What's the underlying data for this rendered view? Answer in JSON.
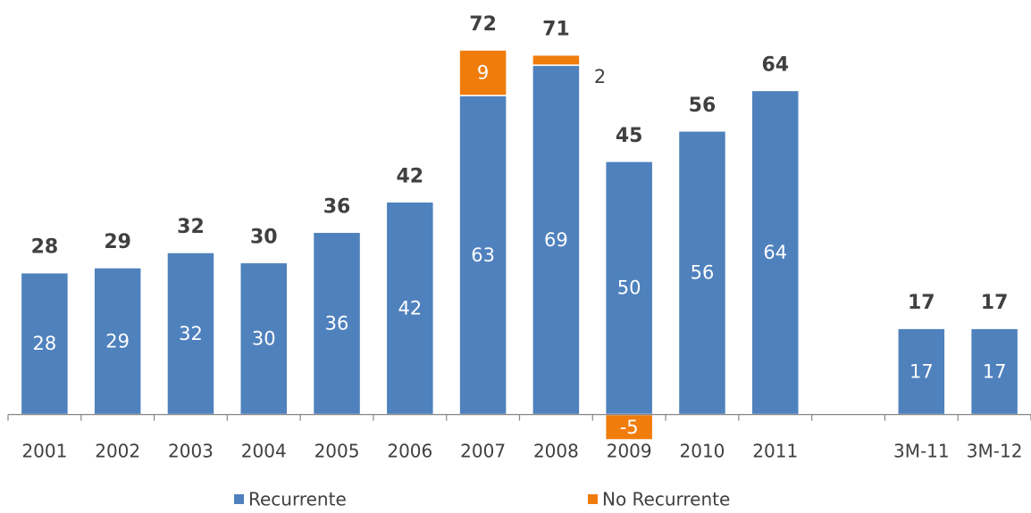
{
  "chart_data": {
    "type": "stacked_bar",
    "categories": [
      "2001",
      "2002",
      "2003",
      "2004",
      "2005",
      "2006",
      "2007",
      "2008",
      "2009",
      "2010",
      "2011",
      null,
      "3M-11",
      "3M-12"
    ],
    "series": [
      {
        "name": "Recurrente",
        "color": "#4f81bd",
        "values": [
          28,
          29,
          32,
          30,
          36,
          42,
          63,
          69,
          50,
          56,
          64,
          null,
          17,
          17
        ]
      },
      {
        "name": "No Recurrente",
        "color": "#f07c0c",
        "values": [
          null,
          null,
          null,
          null,
          null,
          null,
          9,
          2,
          -5,
          null,
          null,
          null,
          null,
          null
        ]
      }
    ],
    "totals": [
      28,
      29,
      32,
      30,
      36,
      42,
      72,
      71,
      45,
      56,
      64,
      null,
      17,
      17
    ],
    "ylim": [
      -8,
      72
    ],
    "legend": "bottom"
  }
}
